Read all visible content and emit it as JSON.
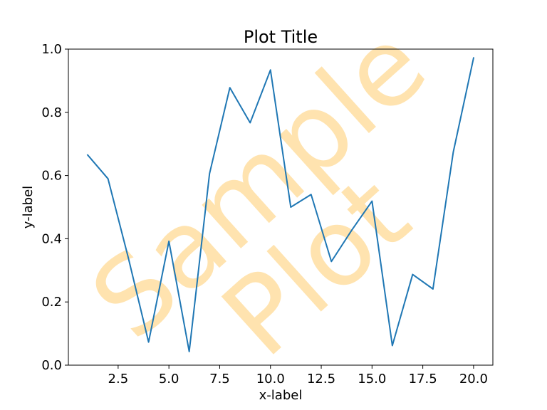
{
  "chart_data": {
    "type": "line",
    "title": "Plot Title",
    "xlabel": "x-label",
    "ylabel": "y-label",
    "xlim": [
      0.05,
      20.95
    ],
    "ylim": [
      0.0,
      1.0
    ],
    "xticks": [
      2.5,
      5.0,
      7.5,
      10.0,
      12.5,
      15.0,
      17.5,
      20.0
    ],
    "xtick_labels": [
      "2.5",
      "5.0",
      "7.5",
      "10.0",
      "12.5",
      "15.0",
      "17.5",
      "20.0"
    ],
    "yticks": [
      0.0,
      0.2,
      0.4,
      0.6,
      0.8,
      1.0
    ],
    "ytick_labels": [
      "0.0",
      "0.2",
      "0.4",
      "0.6",
      "0.8",
      "1.0"
    ],
    "grid": false,
    "series": [
      {
        "color": "#1f77b4",
        "x": [
          1,
          2,
          3,
          4,
          5,
          6,
          7,
          8,
          9,
          10,
          11,
          12,
          13,
          14,
          15,
          16,
          17,
          18,
          19,
          20
        ],
        "y": [
          0.665,
          0.59,
          0.34,
          0.073,
          0.392,
          0.043,
          0.606,
          0.878,
          0.767,
          0.934,
          0.5,
          0.54,
          0.328,
          0.427,
          0.519,
          0.062,
          0.287,
          0.241,
          0.674,
          0.972
        ]
      }
    ],
    "watermark": {
      "line1": "Sample",
      "line2": "Plot",
      "color": "#ffc04d"
    }
  }
}
